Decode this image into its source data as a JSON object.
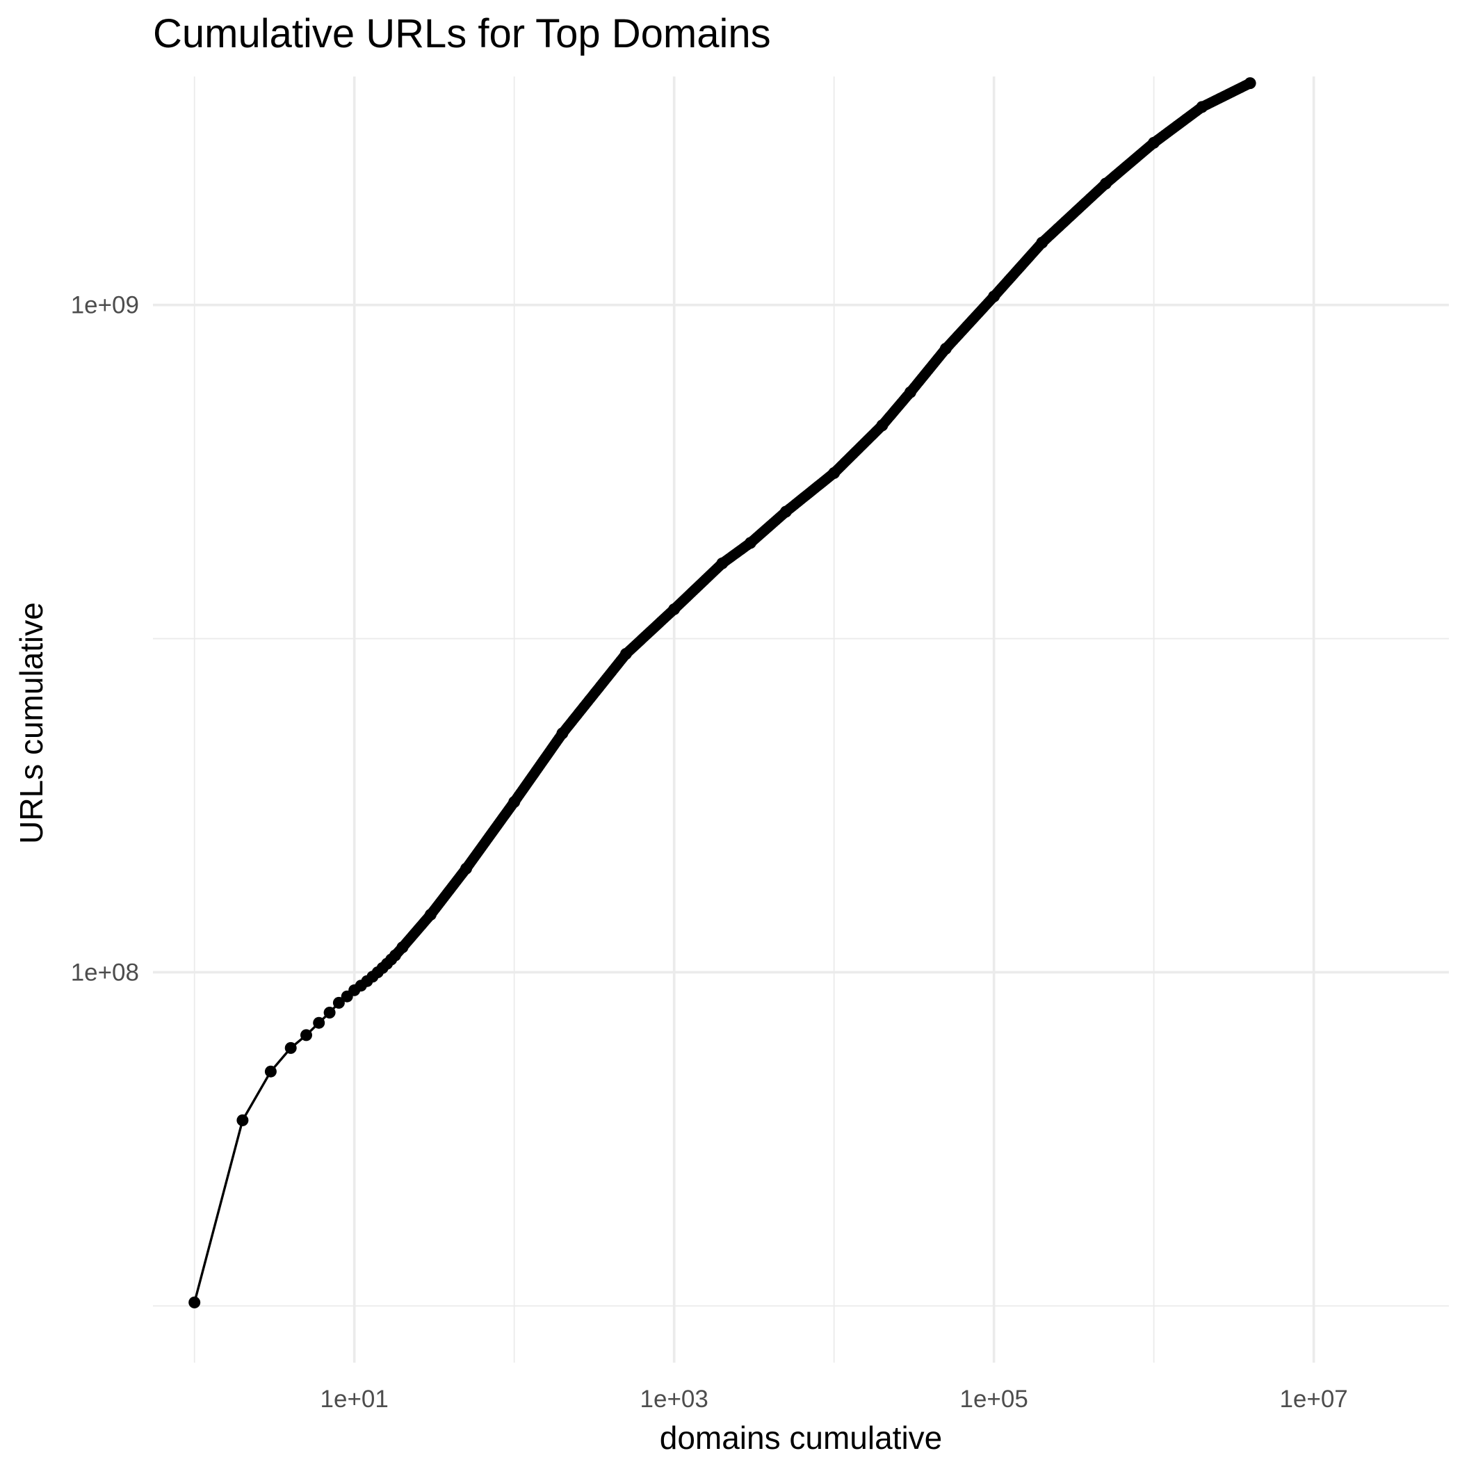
{
  "chart_data": {
    "type": "line",
    "title": "Cumulative URLs for Top Domains",
    "xlabel": "domains cumulative",
    "ylabel": "URLs cumulative",
    "x_scale": "log10",
    "y_scale": "log10",
    "xlim": [
      0.55,
      70000000
    ],
    "ylim": [
      26000000,
      2200000000
    ],
    "grid": true,
    "legend": "none",
    "x_ticks": [
      {
        "value": 10,
        "label": "1e+01"
      },
      {
        "value": 1000,
        "label": "1e+03"
      },
      {
        "value": 100000,
        "label": "1e+05"
      },
      {
        "value": 10000000,
        "label": "1e+07"
      }
    ],
    "y_ticks": [
      {
        "value": 100000000,
        "label": "1e+08"
      },
      {
        "value": 1000000000,
        "label": "1e+09"
      }
    ],
    "series": [
      {
        "color": "#000000",
        "markers": "points",
        "x": [
          1,
          2,
          3,
          4,
          5,
          6,
          7,
          8,
          9,
          10,
          11,
          12,
          13,
          14,
          15,
          16,
          17,
          18,
          20,
          30,
          50,
          100,
          200,
          500,
          1000,
          2000,
          3000,
          5000,
          10000,
          20000,
          30000,
          50000,
          100000,
          200000,
          500000,
          1000000,
          2000000,
          4000000
        ],
        "y": [
          32000000,
          60000000,
          71000000,
          77000000,
          80500000,
          84000000,
          87000000,
          90000000,
          92000000,
          94000000,
          95500000,
          97000000,
          98500000,
          100000000,
          101500000,
          103000000,
          104500000,
          106000000,
          109000000,
          122000000,
          143000000,
          180000000,
          228000000,
          300000000,
          350000000,
          410000000,
          440000000,
          490000000,
          560000000,
          660000000,
          740000000,
          860000000,
          1030000000,
          1240000000,
          1520000000,
          1750000000,
          1980000000,
          2150000000
        ]
      }
    ]
  }
}
